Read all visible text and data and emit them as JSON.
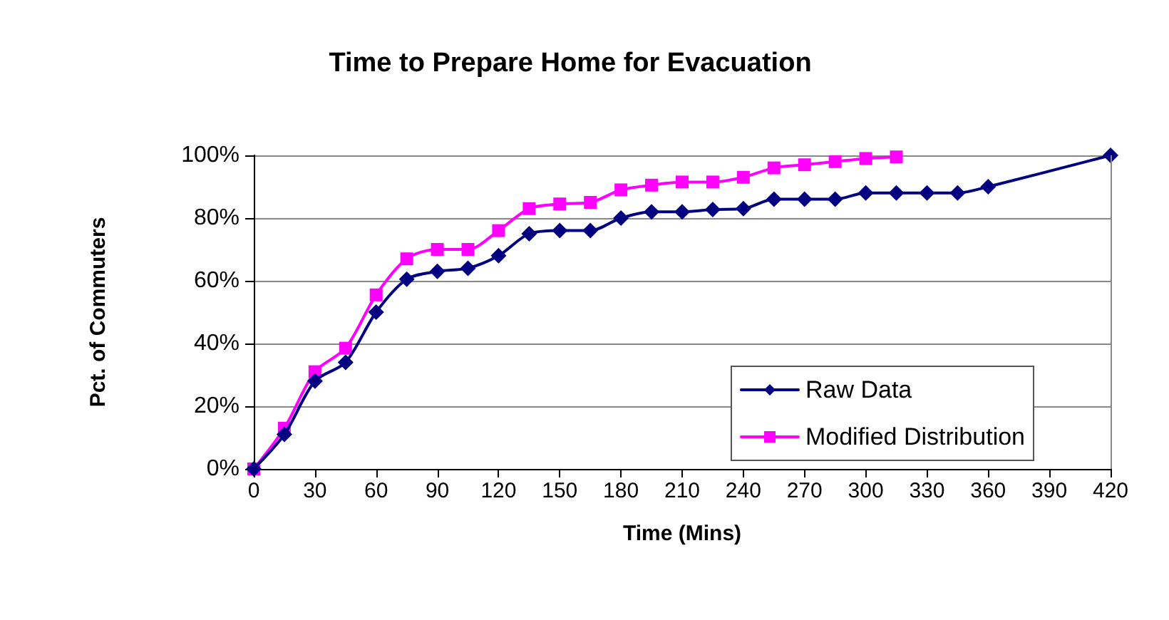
{
  "chart_data": {
    "type": "line",
    "title": "Time to Prepare Home for Evacuation",
    "xlabel": "Time (Mins)",
    "ylabel": "Pct. of Commuters",
    "xlim": [
      0,
      420
    ],
    "xticks": [
      0,
      30,
      60,
      90,
      120,
      150,
      180,
      210,
      240,
      270,
      300,
      330,
      360,
      390,
      420
    ],
    "ylim": [
      0,
      100
    ],
    "yticks": [
      {
        "value": 0,
        "label": "0%"
      },
      {
        "value": 20,
        "label": "20%"
      },
      {
        "value": 40,
        "label": "40%"
      },
      {
        "value": 60,
        "label": "60%"
      },
      {
        "value": 80,
        "label": "80%"
      },
      {
        "value": 100,
        "label": "100%"
      }
    ],
    "grid": "y",
    "legend": "bottom right",
    "series": [
      {
        "name": "Raw Data",
        "color": "#000080",
        "marker": "diamond",
        "x": [
          0,
          15,
          30,
          45,
          60,
          75,
          90,
          105,
          120,
          135,
          150,
          165,
          180,
          195,
          210,
          225,
          240,
          255,
          270,
          285,
          300,
          315,
          330,
          345,
          360,
          420
        ],
        "values": [
          0,
          11,
          28,
          34,
          50,
          60.5,
          63,
          64,
          68,
          75,
          76,
          76,
          80,
          82,
          82,
          82.7,
          83,
          86,
          86,
          86,
          88,
          88,
          88,
          88,
          90,
          100
        ]
      },
      {
        "name": "Modified Distribution",
        "color": "#ff00ff",
        "marker": "square",
        "x": [
          0,
          15,
          30,
          45,
          60,
          75,
          90,
          105,
          120,
          135,
          150,
          165,
          180,
          195,
          210,
          225,
          240,
          255,
          270,
          285,
          300,
          315
        ],
        "values": [
          0,
          13,
          31,
          38.5,
          55.5,
          67,
          70,
          70,
          76,
          83,
          84.5,
          85,
          89,
          90.5,
          91.5,
          91.5,
          93,
          96,
          97,
          98,
          99,
          99.5
        ]
      }
    ]
  }
}
